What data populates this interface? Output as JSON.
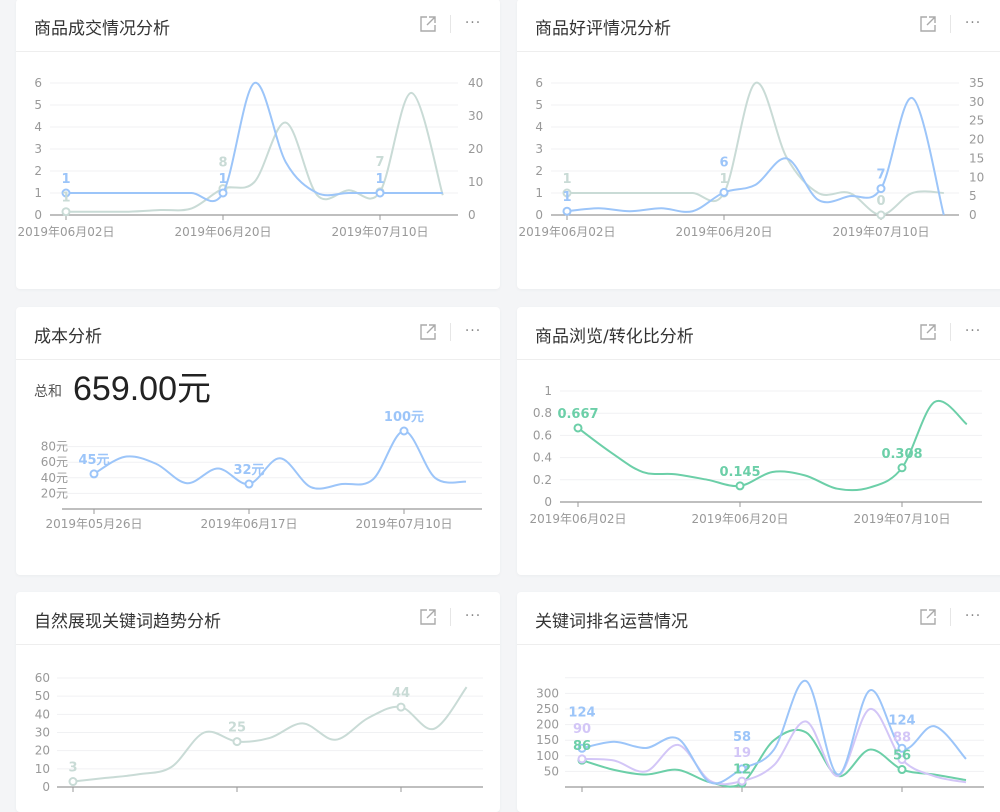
{
  "header_icons": {
    "open": "external-link-icon",
    "more": "more-horizontal-icon",
    "more_label": "···"
  },
  "colors": {
    "blue": "#9cc5f9",
    "sage": "#c9dbd6",
    "teal": "#6ccfa8",
    "purple": "#d3c6f7"
  },
  "cards": [
    {
      "title": "商品成交情况分析",
      "chart_data": {
        "type": "line",
        "x_tick_labels": [
          "2019年06月02日",
          "2019年06月20日",
          "2019年07月10日"
        ],
        "x_tick_index": [
          0,
          5,
          10
        ],
        "y_left": {
          "ticks": [
            "0",
            "1",
            "2",
            "3",
            "4",
            "5",
            "6"
          ],
          "range": [
            0,
            6
          ]
        },
        "y_right": {
          "ticks": [
            "0",
            "10",
            "20",
            "30",
            "40"
          ],
          "range": [
            0,
            40
          ]
        },
        "grid": true,
        "series": [
          {
            "axis": "right",
            "color": "#c9dbd6",
            "values": [
              1,
              1,
              1,
              1.5,
              2,
              8,
              10,
              28,
              6,
              7.5,
              7,
              37,
              6
            ],
            "labeled_points": [
              0,
              5,
              10
            ]
          },
          {
            "axis": "left",
            "color": "#9cc5f9",
            "values": [
              1,
              1,
              1,
              1,
              1,
              1,
              6,
              2.4,
              1,
              1,
              1,
              1,
              1
            ],
            "labeled_points": [
              0,
              5,
              10
            ]
          }
        ]
      }
    },
    {
      "title": "商品好评情况分析",
      "chart_data": {
        "type": "line",
        "x_tick_labels": [
          "2019年06月02日",
          "2019年06月20日",
          "2019年07月10日"
        ],
        "x_tick_index": [
          0,
          5,
          10
        ],
        "y_left": {
          "ticks": [
            "0",
            "1",
            "2",
            "3",
            "4",
            "5",
            "6"
          ],
          "range": [
            0,
            6
          ]
        },
        "y_right": {
          "ticks": [
            "0",
            "5",
            "10",
            "15",
            "20",
            "25",
            "30",
            "35"
          ],
          "range": [
            0,
            35
          ]
        },
        "grid": true,
        "series": [
          {
            "axis": "left",
            "color": "#c9dbd6",
            "values": [
              1,
              1,
              1,
              1,
              1,
              1,
              6,
              2.6,
              1,
              1,
              0,
              1,
              1
            ],
            "labeled_points": [
              0,
              5,
              10
            ]
          },
          {
            "axis": "right",
            "color": "#9cc5f9",
            "values": [
              1,
              1.8,
              1,
              1.8,
              1,
              6,
              8,
              15,
              4,
              5,
              7,
              31,
              0
            ],
            "labeled_points": [
              0,
              5,
              10
            ]
          }
        ]
      }
    },
    {
      "title": "成本分析",
      "total": {
        "label": "总和",
        "value": "659.00元"
      },
      "chart_data": {
        "type": "line",
        "x_tick_labels": [
          "2019年05月26日",
          "2019年06月17日",
          "2019年07月10日"
        ],
        "x_tick_index": [
          0,
          5,
          10
        ],
        "y_left": {
          "ticks": [
            "20元",
            "40元",
            "60元",
            "80元"
          ],
          "tick_values": [
            20,
            40,
            60,
            80
          ]
        },
        "unit": "元",
        "grid": true,
        "series": [
          {
            "axis": "left",
            "color": "#9cc5f9",
            "values": [
              45,
              67,
              58,
              33,
              52,
              32,
              65,
              28,
              32,
              38,
              100,
              40,
              35
            ],
            "labeled_points": [
              0,
              5,
              10
            ],
            "label_suffix": "元"
          }
        ]
      }
    },
    {
      "title": "商品浏览/转化比分析",
      "chart_data": {
        "type": "line",
        "x_tick_labels": [
          "2019年06月02日",
          "2019年06月20日",
          "2019年07月10日"
        ],
        "x_tick_index": [
          0,
          5,
          10
        ],
        "y_left": {
          "ticks": [
            "0",
            "0.2",
            "0.4",
            "0.6",
            "0.8",
            "1"
          ],
          "range": [
            0,
            1
          ]
        },
        "grid": true,
        "series": [
          {
            "axis": "left",
            "color": "#6ccfa8",
            "values": [
              0.667,
              0.45,
              0.27,
              0.25,
              0.2,
              0.145,
              0.27,
              0.24,
              0.12,
              0.13,
              0.308,
              0.9,
              0.7
            ],
            "labeled_points": [
              0,
              5,
              10
            ]
          }
        ]
      }
    },
    {
      "title": "自然展现关键词趋势分析",
      "chart_data": {
        "type": "line",
        "x_tick_index": [
          0,
          5,
          10
        ],
        "y_left": {
          "ticks": [
            "0",
            "10",
            "20",
            "30",
            "40",
            "50",
            "60"
          ],
          "range": [
            0,
            60
          ]
        },
        "grid": true,
        "series": [
          {
            "axis": "left",
            "color": "#c9dbd6",
            "values": [
              3,
              5,
              7,
              11,
              30,
              25,
              27,
              35,
              26,
              38,
              44,
              32,
              55
            ],
            "labeled_points": [
              0,
              5,
              10
            ]
          }
        ]
      }
    },
    {
      "title": "关键词排名运营情况",
      "chart_data": {
        "type": "line",
        "x_tick_index": [
          0,
          5,
          10
        ],
        "y_left": {
          "ticks": [
            "50",
            "100",
            "150",
            "200",
            "250",
            "300"
          ],
          "tick_values": [
            50,
            100,
            150,
            200,
            250,
            300
          ]
        },
        "grid": true,
        "series": [
          {
            "axis": "left",
            "color": "#6ccfa8",
            "values": [
              86,
              55,
              40,
              55,
              15,
              12,
              150,
              175,
              35,
              120,
              56,
              40,
              22
            ],
            "labeled_points": [
              0,
              5,
              10
            ]
          },
          {
            "axis": "left",
            "color": "#d3c6f7",
            "values": [
              90,
              85,
              50,
              135,
              20,
              19,
              70,
              210,
              35,
              250,
              88,
              35,
              15
            ],
            "labeled_points": [
              0,
              5,
              10
            ]
          },
          {
            "axis": "left",
            "color": "#9cc5f9",
            "values": [
              124,
              145,
              125,
              155,
              15,
              58,
              120,
              340,
              40,
              310,
              124,
              195,
              90
            ],
            "labeled_points": [
              0,
              5,
              10
            ]
          }
        ]
      }
    }
  ]
}
